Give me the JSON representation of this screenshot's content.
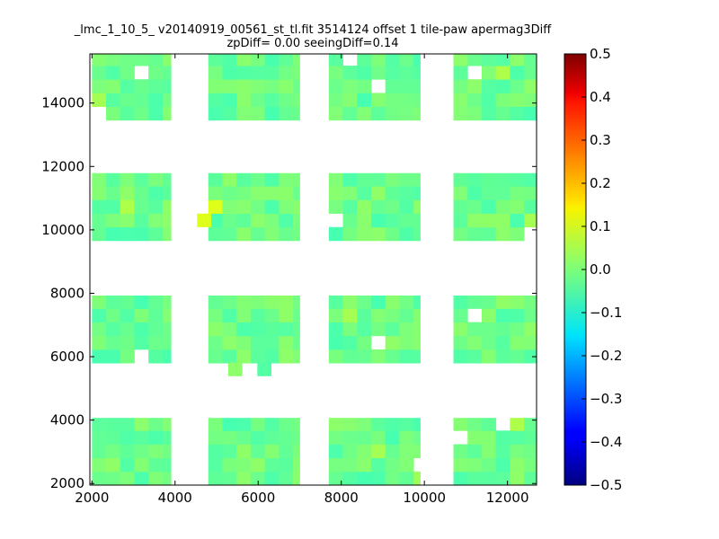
{
  "chart_data": {
    "type": "heatmap",
    "title": "_lmc_1_10_5_ v20140919_00561_st_tl.fit 3514124 offset 1 tile-paw apermag3Diff",
    "subtitle": "zpDiff= 0.00 seeingDiff=0.14",
    "xlabel": "",
    "ylabel": "",
    "xlim": [
      1950,
      12700
    ],
    "ylim": [
      1950,
      15550
    ],
    "x_ticks": [
      2000,
      4000,
      6000,
      8000,
      10000,
      12000
    ],
    "y_ticks": [
      2000,
      4000,
      6000,
      8000,
      10000,
      12000,
      14000
    ],
    "x_tick_labels": [
      "2000",
      "4000",
      "6000",
      "8000",
      "10000",
      "12000"
    ],
    "y_tick_labels": [
      "2000",
      "4000",
      "6000",
      "8000",
      "10000",
      "12000",
      "14000"
    ],
    "colorbar": {
      "min": -0.5,
      "max": 0.5,
      "ticks": [
        0.5,
        0.4,
        0.3,
        0.2,
        0.1,
        0.0,
        -0.1,
        -0.2,
        -0.3,
        -0.4,
        -0.5
      ],
      "tick_labels": [
        "0.5",
        "0.4",
        "0.3",
        "0.2",
        "0.1",
        "0.0",
        "−0.1",
        "−0.2",
        "−0.3",
        "−0.4",
        "−0.5"
      ],
      "colormap": "jet"
    },
    "grid": false,
    "cell_size": [
      340,
      430
    ],
    "x_blocks": [
      [
        2000,
        3900
      ],
      [
        4800,
        7000
      ],
      [
        7700,
        9900
      ],
      [
        10700,
        12700
      ]
    ],
    "y_blocks": [
      [
        1950,
        4070
      ],
      [
        5800,
        7930
      ],
      [
        9660,
        11790
      ],
      [
        13460,
        15550
      ]
    ],
    "overall_value_range": [
      -0.08,
      0.12
    ],
    "cells": [
      {
        "x": 4700,
        "y": 10300,
        "v": 0.12
      },
      {
        "x": 3850,
        "y": 11600,
        "v": -0.07
      },
      {
        "x": 6150,
        "y": 5600,
        "v": -0.05
      },
      {
        "x": 5450,
        "y": 5600,
        "v": 0.02
      },
      {
        "x": 3850,
        "y": 11200,
        "v": -0.03
      },
      {
        "x": 8400,
        "y": 7000,
        "v": -0.04
      },
      {
        "x": 6150,
        "y": 6400,
        "v": -0.04
      },
      {
        "x": 2900,
        "y": 10300,
        "v": 0.06
      },
      {
        "x": 11900,
        "y": 4000,
        "v": 0.06
      },
      {
        "x": 12450,
        "y": 9900,
        "v": 0.05
      },
      {
        "x": 7800,
        "y": 15300,
        "v": 0.05
      },
      {
        "x": 7800,
        "y": 6700,
        "v": 0.05
      },
      {
        "x": 8700,
        "y": 3000,
        "v": 0.05
      },
      {
        "x": 10900,
        "y": 14600,
        "v": 0.06
      },
      {
        "x": 11500,
        "y": 14700,
        "v": 0.06
      },
      {
        "x": 3500,
        "y": 7500,
        "v": -0.03
      },
      {
        "x": 4950,
        "y": 7200,
        "v": -0.03
      },
      {
        "x": 9600,
        "y": 2200,
        "v": 0.04
      },
      {
        "x": 2200,
        "y": 13700,
        "v": 0.05
      }
    ]
  }
}
